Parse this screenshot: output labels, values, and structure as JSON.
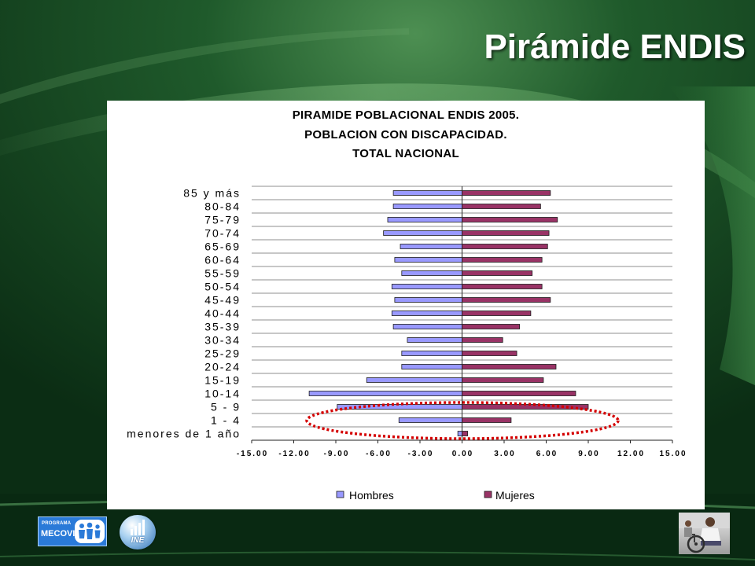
{
  "slide": {
    "title": "Pirámide ENDIS"
  },
  "chart_data": {
    "type": "bar",
    "orientation": "horizontal",
    "title": [
      "PIRAMIDE POBLACIONAL ENDIS 2005.",
      "POBLACION CON DISCAPACIDAD.",
      "TOTAL NACIONAL"
    ],
    "categories": [
      "85 y más",
      "80-84",
      "75-79",
      "70-74",
      "65-69",
      "60-64",
      "55-59",
      "50-54",
      "45-49",
      "40-44",
      "35-39",
      "30-34",
      "25-29",
      "20-24",
      "15-19",
      "10-14",
      "5 - 9",
      "1 - 4",
      "menores de 1 año"
    ],
    "series": [
      {
        "name": "Hombres",
        "color": "#9999FF",
        "values": [
          -4.9,
          -4.9,
          -5.3,
          -5.6,
          -4.4,
          -4.8,
          -4.3,
          -5.0,
          -4.8,
          -5.0,
          -4.9,
          -3.9,
          -4.3,
          -4.3,
          -6.8,
          -10.9,
          -8.9,
          -4.5,
          -0.3
        ]
      },
      {
        "name": "Mujeres",
        "color": "#993366",
        "values": [
          6.3,
          5.6,
          6.8,
          6.2,
          6.1,
          5.7,
          5.0,
          5.7,
          6.3,
          4.9,
          4.1,
          2.9,
          3.9,
          6.7,
          5.8,
          8.1,
          9.0,
          3.5,
          0.4
        ]
      }
    ],
    "xlim": [
      -15,
      15
    ],
    "xticks": [
      "-15.00",
      "-12.00",
      "-9.00",
      "-6.00",
      "-3.00",
      "0.00",
      "3.00",
      "6.00",
      "9.00",
      "12.00",
      "15.00"
    ],
    "grid": true,
    "legend": "bottom"
  },
  "colors": {
    "background": "#0f3a1c",
    "title_text": "#ffffff",
    "chart_panel": "#ffffff",
    "annotation": "#d40000"
  },
  "logos": {
    "mecovi_top": "PROGRAMA",
    "mecovi_name": "MECOVI",
    "ine": "INE"
  },
  "icons": {
    "photo": "wheelchair-user-photo",
    "people": "people-icon",
    "bars": "bar-chart-icon"
  }
}
